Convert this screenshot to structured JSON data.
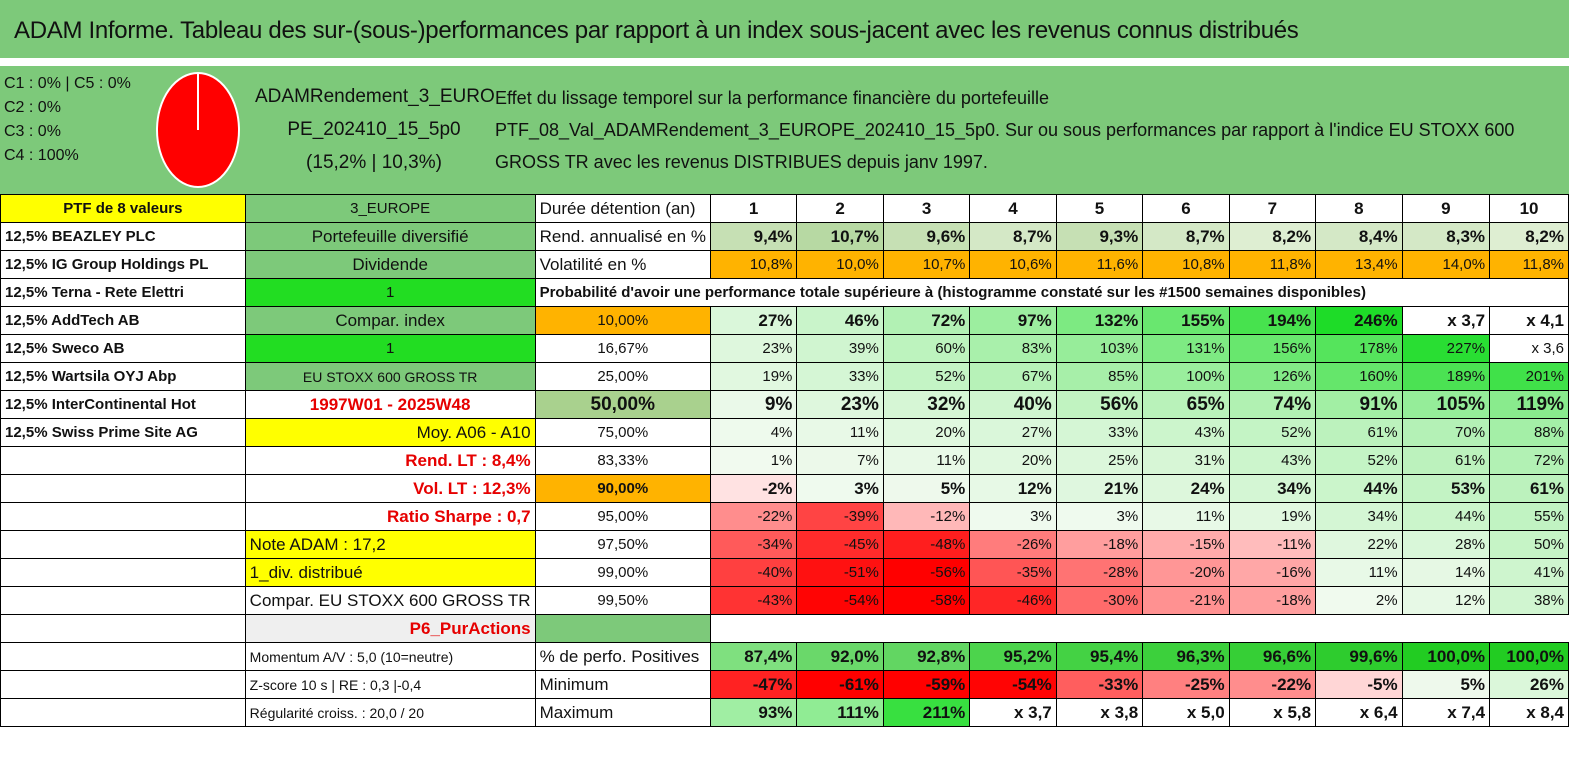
{
  "title": "ADAM Informe. Tableau des sur-(sous-)performances par rapport à un index sous-jacent avec les revenus connus distribués",
  "legend": [
    "C1 : 0% | C5 : 0%",
    "C2 : 0%",
    "C3 : 0%",
    "C4 : 100%"
  ],
  "pie": {
    "C4_share": 100,
    "color": "#ff0000"
  },
  "portfolio_name": [
    "ADAMRendement_3_EURO",
    "PE_202410_15_5p0",
    "(15,2% | 10,3%)"
  ],
  "description": [
    "Effet du lissage temporel sur la performance financière du portefeuille",
    "PTF_08_Val_ADAMRendement_3_EUROPE_202410_15_5p0. Sur ou sous performances par rapport à l'indice EU STOXX 600",
    "GROSS TR avec les revenus DISTRIBUES depuis janv 1997."
  ],
  "holdings_header": "PTF de 8 valeurs",
  "holdings": [
    "12,5% BEAZLEY PLC",
    "12,5% IG Group Holdings PL",
    "12,5% Terna - Rete Elettri",
    "12,5% AddTech AB",
    "12,5% Sweco AB",
    "12,5% Wartsila OYJ Abp",
    "12,5% InterContinental Hot",
    "12,5% Swiss Prime Site AG"
  ],
  "info": {
    "region": "3_EUROPE",
    "diversified": "Portefeuille diversifié",
    "dividend": "Dividende",
    "one_a": "1",
    "compar_index": "Compar. index",
    "one_b": "1",
    "index_name": "EU STOXX 600 GROSS TR",
    "period": "1997W01 - 2025W48",
    "moy": "Moy. A06 - A10",
    "rend_lt": "Rend. LT : 8,4%",
    "vol_lt": "Vol. LT : 12,3%",
    "sharpe": "Ratio Sharpe : 0,7",
    "note": "Note ADAM : 17,2",
    "div": "1_div. distribué",
    "compar_full": "Compar. EU STOXX 600 GROSS TR",
    "p6": "P6_PurActions",
    "momentum": "Momentum A/V : 5,0 (10=neutre)",
    "zscore": "Z-score 10 s | RE : 0,3 |-0,4",
    "regularite": "Régularité croiss. : 20,0 / 20"
  },
  "table": {
    "duration_label": "Durée détention (an)",
    "years": [
      "1",
      "2",
      "3",
      "4",
      "5",
      "6",
      "7",
      "8",
      "9",
      "10"
    ],
    "rend_label": "Rend. annualisé en %",
    "rend": [
      "9,4%",
      "10,7%",
      "9,6%",
      "8,7%",
      "9,3%",
      "8,7%",
      "8,2%",
      "8,4%",
      "8,3%",
      "8,2%"
    ],
    "vol_label": "Volatilité en %",
    "vol": [
      "10,8%",
      "10,0%",
      "10,7%",
      "10,6%",
      "11,6%",
      "10,8%",
      "11,8%",
      "13,4%",
      "14,0%",
      "11,8%"
    ],
    "prob_header": "Probabilité d'avoir une performance totale supérieure à (histogramme constaté sur les #1500 semaines disponibles)",
    "prob_rows": [
      {
        "label": "10,00%",
        "values": [
          "27%",
          "46%",
          "72%",
          "97%",
          "132%",
          "155%",
          "194%",
          "246%",
          "x 3,7",
          "x 4,1"
        ]
      },
      {
        "label": "16,67%",
        "values": [
          "23%",
          "39%",
          "60%",
          "83%",
          "103%",
          "131%",
          "156%",
          "178%",
          "227%",
          "x 3,6"
        ]
      },
      {
        "label": "25,00%",
        "values": [
          "19%",
          "33%",
          "52%",
          "67%",
          "85%",
          "100%",
          "126%",
          "160%",
          "189%",
          "201%"
        ]
      },
      {
        "label": "50,00%",
        "values": [
          "9%",
          "23%",
          "32%",
          "40%",
          "56%",
          "65%",
          "74%",
          "91%",
          "105%",
          "119%"
        ]
      },
      {
        "label": "75,00%",
        "values": [
          "4%",
          "11%",
          "20%",
          "27%",
          "33%",
          "43%",
          "52%",
          "61%",
          "70%",
          "88%"
        ]
      },
      {
        "label": "83,33%",
        "values": [
          "1%",
          "7%",
          "11%",
          "20%",
          "25%",
          "31%",
          "43%",
          "52%",
          "61%",
          "72%"
        ]
      },
      {
        "label": "90,00%",
        "values": [
          "-2%",
          "3%",
          "5%",
          "12%",
          "21%",
          "24%",
          "34%",
          "44%",
          "53%",
          "61%"
        ]
      },
      {
        "label": "95,00%",
        "values": [
          "-22%",
          "-39%",
          "-12%",
          "3%",
          "3%",
          "11%",
          "19%",
          "34%",
          "44%",
          "55%"
        ]
      },
      {
        "label": "97,50%",
        "values": [
          "-34%",
          "-45%",
          "-48%",
          "-26%",
          "-18%",
          "-15%",
          "-11%",
          "22%",
          "28%",
          "50%"
        ]
      },
      {
        "label": "99,00%",
        "values": [
          "-40%",
          "-51%",
          "-56%",
          "-35%",
          "-28%",
          "-20%",
          "-16%",
          "11%",
          "14%",
          "41%"
        ]
      },
      {
        "label": "99,50%",
        "values": [
          "-43%",
          "-54%",
          "-58%",
          "-46%",
          "-30%",
          "-21%",
          "-18%",
          "2%",
          "12%",
          "38%"
        ]
      }
    ],
    "positives_label": "% de perfo. Positives",
    "positives": [
      "87,4%",
      "92,0%",
      "92,8%",
      "95,2%",
      "95,4%",
      "96,3%",
      "96,6%",
      "99,6%",
      "100,0%",
      "100,0%"
    ],
    "min_label": "Minimum",
    "minimum": [
      "-47%",
      "-61%",
      "-59%",
      "-54%",
      "-33%",
      "-25%",
      "-22%",
      "-5%",
      "5%",
      "26%"
    ],
    "max_label": "Maximum",
    "maximum": [
      "93%",
      "111%",
      "211%",
      "x 3,7",
      "x 3,8",
      "x 5,0",
      "x 5,8",
      "x 6,4",
      "x 7,4",
      "x 8,4"
    ]
  },
  "colors": {
    "header_green": "#7dc97a",
    "yellow": "#ffff00",
    "orange": "#ffb300",
    "bright_green": "#22dd22",
    "red": "#ff0000"
  }
}
